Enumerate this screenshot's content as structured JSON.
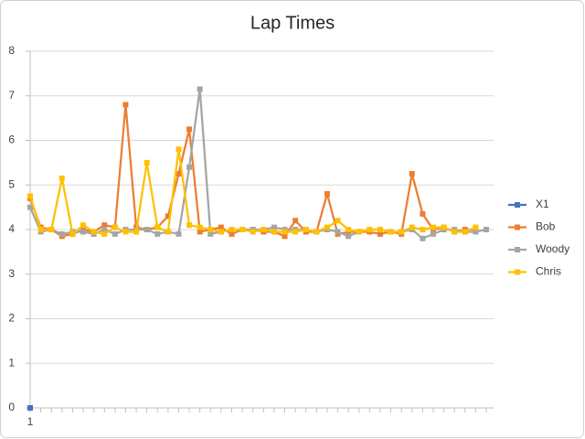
{
  "chart_data": {
    "type": "line",
    "title": "Lap Times",
    "categories": [
      "1",
      null,
      null,
      null,
      null,
      null,
      null,
      null,
      null,
      null,
      null,
      null,
      null,
      null,
      null,
      null,
      null,
      null,
      null,
      null,
      null,
      null,
      null,
      null,
      null,
      null,
      null,
      null,
      null,
      null,
      null,
      null,
      null,
      null,
      null,
      null,
      null,
      null,
      null,
      null,
      null,
      null,
      null,
      null
    ],
    "series": [
      {
        "name": "X1",
        "color": "#4472c4",
        "values": [
          0,
          null,
          null,
          null,
          null,
          null,
          null,
          null,
          null,
          null,
          null,
          null,
          null,
          null,
          null,
          null,
          null,
          null,
          null,
          null,
          null,
          null,
          null,
          null,
          null,
          null,
          null,
          null,
          null,
          null,
          null,
          null,
          null,
          null,
          null,
          null,
          null,
          null,
          null,
          null,
          null,
          null,
          null,
          null
        ]
      },
      {
        "name": "Bob",
        "color": "#ed7d31",
        "values": [
          4.7,
          4.05,
          4.0,
          3.85,
          3.9,
          4.0,
          3.95,
          4.1,
          4.05,
          6.8,
          4.05,
          4.0,
          4.05,
          4.3,
          5.25,
          6.25,
          3.95,
          4.0,
          4.05,
          3.9,
          4.0,
          4.0,
          3.95,
          3.95,
          3.85,
          4.2,
          3.95,
          3.95,
          4.8,
          3.9,
          3.95,
          3.95,
          3.95,
          3.9,
          3.95,
          3.9,
          5.25,
          4.35,
          4.0,
          4.05,
          3.95,
          4.0,
          4.0,
          null
        ]
      },
      {
        "name": "Woody",
        "color": "#a5a5a5",
        "values": [
          4.5,
          3.95,
          4.0,
          3.9,
          3.95,
          3.95,
          3.9,
          4.0,
          3.9,
          4.0,
          4.0,
          4.0,
          3.9,
          3.95,
          3.9,
          5.4,
          7.15,
          3.9,
          3.95,
          4.0,
          4.0,
          4.0,
          4.0,
          4.05,
          4.0,
          4.0,
          4.0,
          3.95,
          4.0,
          3.95,
          3.85,
          3.95,
          4.0,
          4.0,
          3.95,
          3.95,
          4.0,
          3.8,
          3.9,
          4.0,
          4.0,
          3.95,
          3.95,
          4.0
        ]
      },
      {
        "name": "Chris",
        "color": "#ffc000",
        "values": [
          4.75,
          4.0,
          4.0,
          5.15,
          3.9,
          4.1,
          3.95,
          3.9,
          4.05,
          3.95,
          3.95,
          5.5,
          4.05,
          3.95,
          5.8,
          4.1,
          4.05,
          4.0,
          3.95,
          4.0,
          4.0,
          3.95,
          4.0,
          3.95,
          3.95,
          3.95,
          4.0,
          3.95,
          4.05,
          4.2,
          4.0,
          3.95,
          4.0,
          4.0,
          3.95,
          3.95,
          4.05,
          4.0,
          4.05,
          4.05,
          3.95,
          3.95,
          4.05,
          null
        ]
      }
    ],
    "ylim": [
      0,
      8
    ],
    "yticks": [
      0,
      1,
      2,
      3,
      4,
      5,
      6,
      7,
      8
    ],
    "grid": true,
    "legend": "right"
  }
}
